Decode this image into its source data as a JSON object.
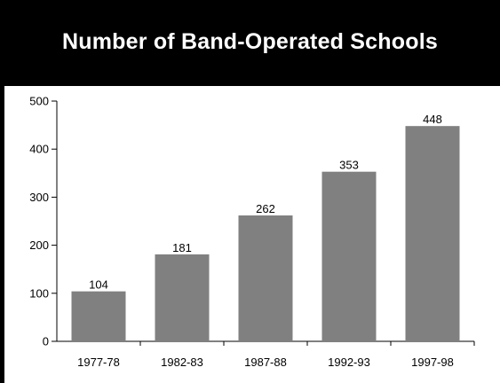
{
  "title": "Number of Band-Operated Schools",
  "chart_data": {
    "type": "bar",
    "title": "Number of Band-Operated Schools",
    "xlabel": "",
    "ylabel": "",
    "categories": [
      "1977-78",
      "1982-83",
      "1987-88",
      "1992-93",
      "1997-98"
    ],
    "values": [
      104,
      181,
      262,
      353,
      448
    ],
    "ylim": [
      0,
      500
    ],
    "yticks": [
      0,
      100,
      200,
      300,
      400,
      500
    ],
    "grid": false,
    "bar_color": "#808080",
    "data_labels": [
      "104",
      "181",
      "262",
      "353",
      "448"
    ]
  }
}
